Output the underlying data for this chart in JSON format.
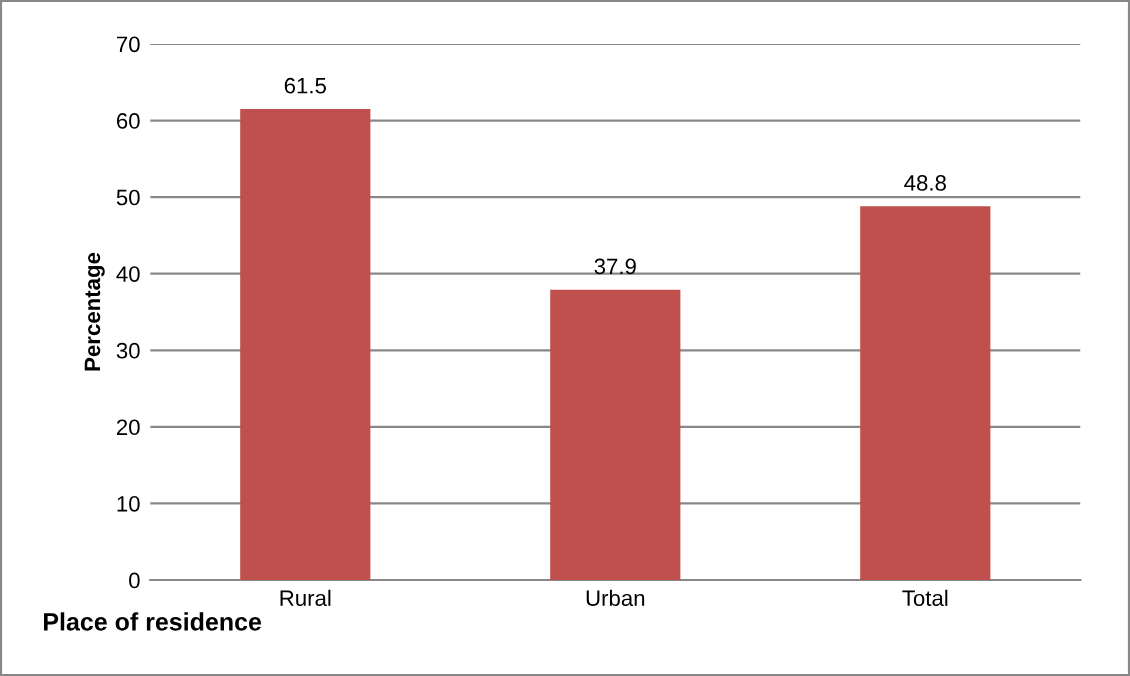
{
  "chart_data": {
    "type": "bar",
    "xlabel": "Place of residence",
    "ylabel": "Percentage",
    "categories": [
      "Rural",
      "Urban",
      "Total"
    ],
    "values": [
      61.5,
      37.9,
      48.8
    ],
    "color": "#c0504d",
    "ylim": [
      0,
      70
    ],
    "yticks": [
      0,
      10,
      20,
      30,
      40,
      50,
      60,
      70
    ],
    "grid": "y",
    "data_labels": true
  }
}
